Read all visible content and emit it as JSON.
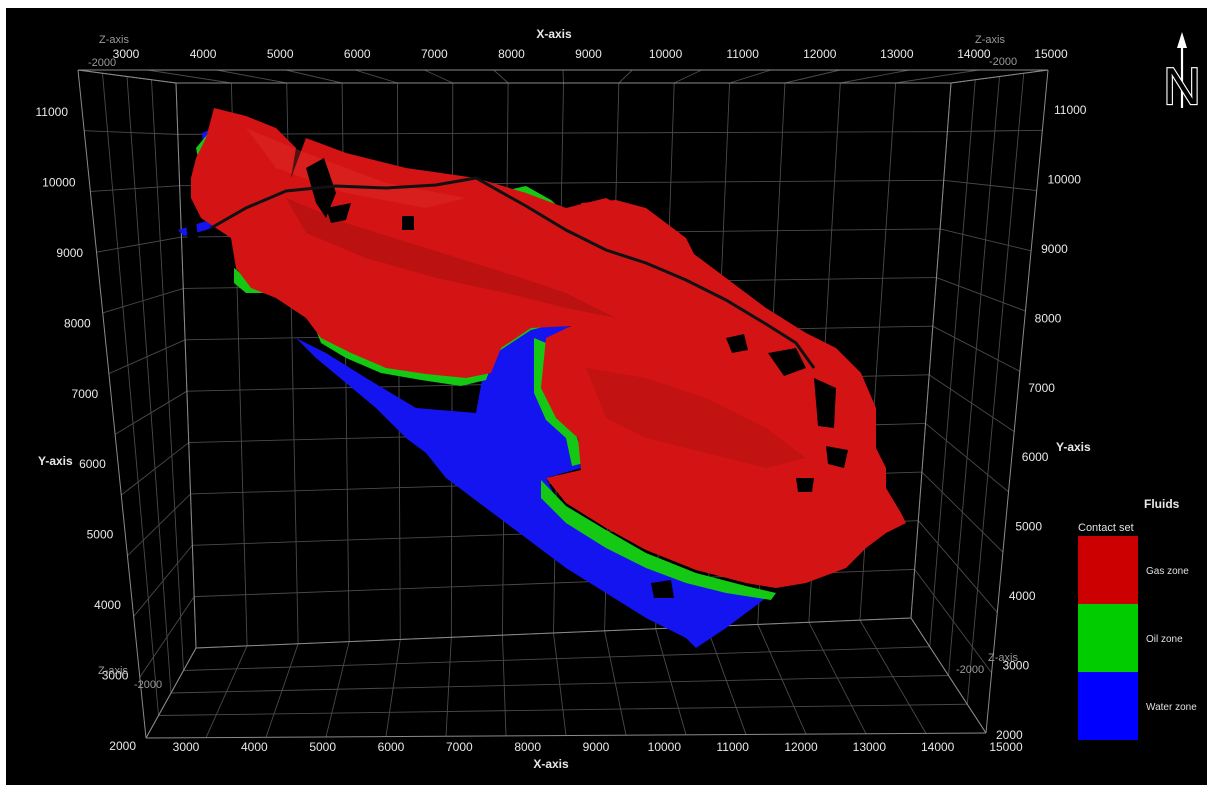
{
  "axes": {
    "x_title": "X-axis",
    "y_title": "Y-axis",
    "z_title": "Z-axis",
    "x_ticks": [
      "3000",
      "4000",
      "5000",
      "6000",
      "7000",
      "8000",
      "9000",
      "10000",
      "11000",
      "12000",
      "13000",
      "14000",
      "15000"
    ],
    "y_ticks": [
      "11000",
      "10000",
      "9000",
      "8000",
      "7000",
      "6000",
      "5000",
      "4000",
      "3000",
      "2000"
    ],
    "z_ticks": [
      "-2000",
      "-2000",
      "-2000",
      "-2000"
    ]
  },
  "compass": {
    "label": "N",
    "icon": "north-arrow-icon"
  },
  "legend": {
    "title": "Fluids",
    "subtitle": "Contact set",
    "items": [
      {
        "label": "Gas zone",
        "color": "#cc0000"
      },
      {
        "label": "Oil zone",
        "color": "#00cc00"
      },
      {
        "label": "Water zone",
        "color": "#0000ff"
      }
    ]
  },
  "colors": {
    "background": "#000000",
    "gas": "#d41414",
    "oil": "#14c814",
    "water": "#1414f0"
  }
}
